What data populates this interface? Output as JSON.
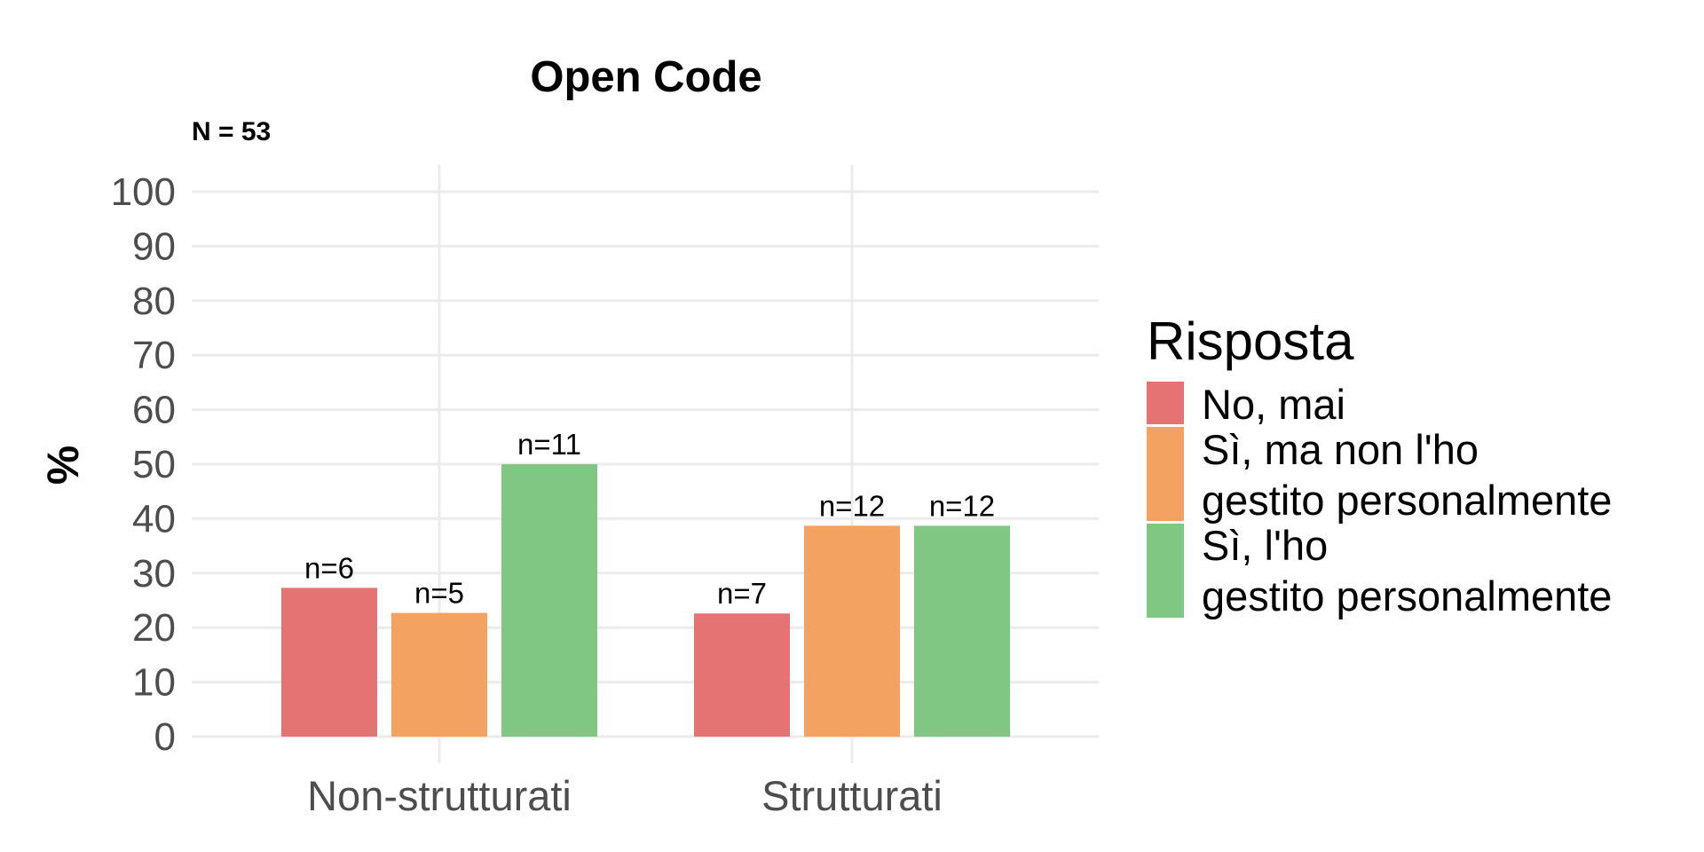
{
  "chart_data": {
    "type": "bar",
    "title": "Open Code",
    "subtitle": "N = 53",
    "ylabel": "%",
    "xlabel": "",
    "ylim": [
      0,
      100
    ],
    "yticks": [
      0,
      10,
      20,
      30,
      40,
      50,
      60,
      70,
      80,
      90,
      100
    ],
    "categories": [
      "Non-strutturati",
      "Strutturati"
    ],
    "grid": true,
    "legend": {
      "title": "Risposta",
      "placement": "right"
    },
    "series": [
      {
        "name": "No, mai",
        "color": "#e57373",
        "values": [
          27.3,
          22.6
        ],
        "labels": [
          "n=6",
          "n=7"
        ]
      },
      {
        "name": "Sì, ma non l'ho gestito personalmente",
        "name_lines": [
          "Sì, ma non l'ho",
          "gestito personalmente"
        ],
        "color": "#f4a261",
        "values": [
          22.7,
          38.7
        ],
        "labels": [
          "n=5",
          "n=12"
        ]
      },
      {
        "name": "Sì, l'ho gestito personalmente",
        "name_lines": [
          "Sì, l'ho",
          "gestito personalmente"
        ],
        "color": "#81c784",
        "values": [
          50.0,
          38.7
        ],
        "labels": [
          "n=11",
          "n=12"
        ]
      }
    ]
  }
}
